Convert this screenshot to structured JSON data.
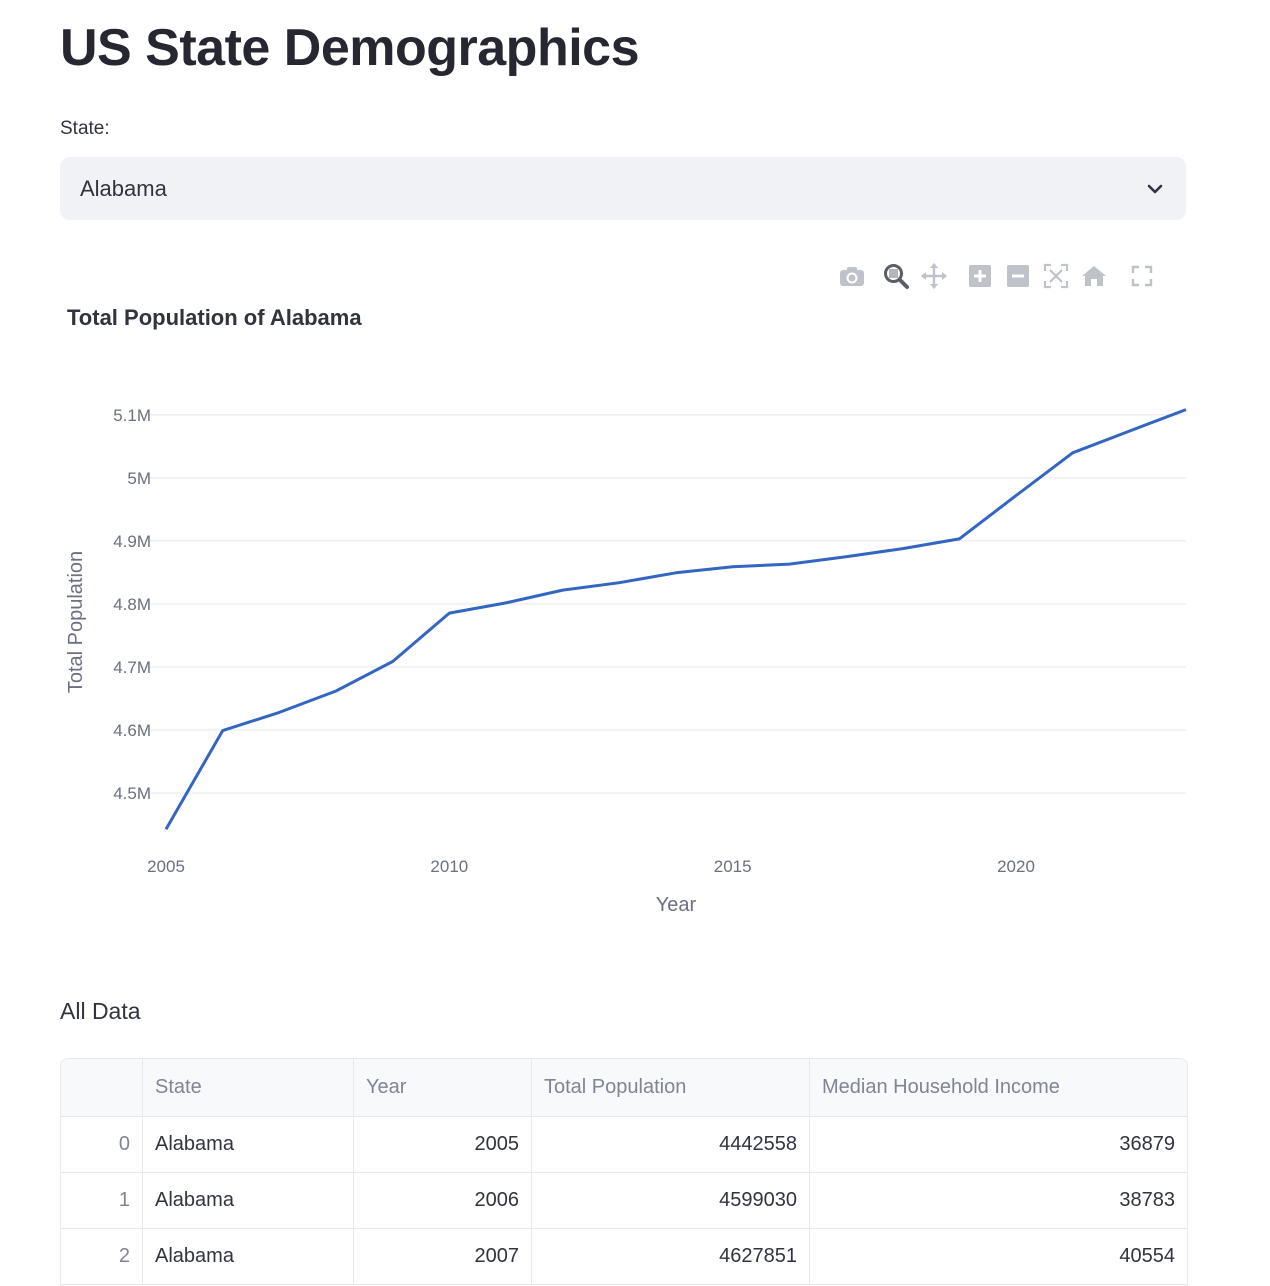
{
  "page_title": "US State Demographics",
  "state_selector": {
    "label": "State:",
    "value": "Alabama"
  },
  "modebar": {
    "icons": [
      "camera-icon",
      "zoom-icon",
      "pan-icon",
      "zoom-in-icon",
      "zoom-out-icon",
      "autoscale-icon",
      "reset-axes-icon",
      "fullscreen-icon"
    ]
  },
  "colors": {
    "line": "#3266c0",
    "grid": "#e6e8ec",
    "axis_text": "#6b6f80"
  },
  "chart_data": {
    "type": "line",
    "title": "Total Population of Alabama",
    "xlabel": "Year",
    "ylabel": "Total Population",
    "x": [
      2005,
      2006,
      2007,
      2008,
      2009,
      2010,
      2011,
      2012,
      2013,
      2014,
      2015,
      2016,
      2017,
      2018,
      2019,
      2020,
      2021,
      2022,
      2023
    ],
    "y": [
      4442558,
      4599030,
      4627851,
      4661900,
      4708708,
      4785437,
      4801695,
      4822023,
      4833722,
      4849377,
      4858979,
      4863300,
      4874747,
      4887871,
      4903185,
      4972000,
      5039877,
      5074296,
      5108468
    ],
    "xlim": [
      2005,
      2023
    ],
    "ylim": [
      4400000,
      5130000
    ],
    "x_ticks": [
      2005,
      2010,
      2015,
      2020
    ],
    "x_tick_labels": [
      "2005",
      "2010",
      "2015",
      "2020"
    ],
    "y_ticks": [
      4500000,
      4600000,
      4700000,
      4800000,
      4900000,
      5000000,
      5100000
    ],
    "y_tick_labels": [
      "4.5M",
      "4.6M",
      "4.7M",
      "4.8M",
      "4.9M",
      "5M",
      "5.1M"
    ],
    "grid": true
  },
  "table": {
    "section_label": "All Data",
    "columns": [
      "",
      "State",
      "Year",
      "Total Population",
      "Median Household Income"
    ],
    "rows": [
      [
        "0",
        "Alabama",
        "2005",
        "4442558",
        "36879"
      ],
      [
        "1",
        "Alabama",
        "2006",
        "4599030",
        "38783"
      ],
      [
        "2",
        "Alabama",
        "2007",
        "4627851",
        "40554"
      ]
    ]
  }
}
